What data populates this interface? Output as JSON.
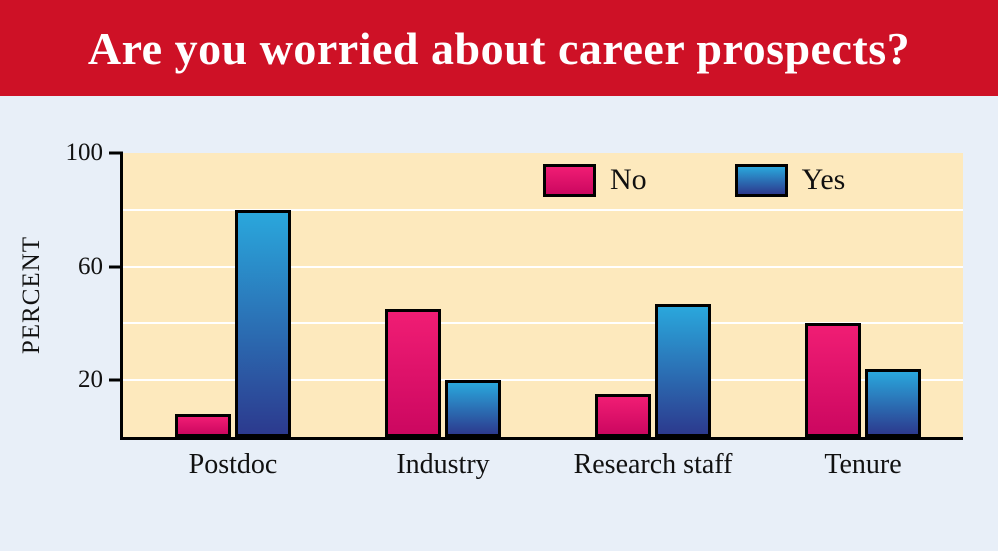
{
  "banner": {
    "title": "Are you worried about career prospects?"
  },
  "colors": {
    "banner_bg": "#ce1126",
    "banner_text": "#ffffff",
    "page_bg": "#e8eff8",
    "plot_bg": "#fde9bd",
    "gridline": "#ffffff",
    "axis": "#000000",
    "no_top": "#f01d74",
    "no_bottom": "#cc0760",
    "yes_top": "#2aa7dc",
    "yes_bottom": "#2c3a8e"
  },
  "chart_data": {
    "type": "bar",
    "title": "Are you worried about career prospects?",
    "xlabel": "",
    "ylabel": "PERCENT",
    "ylim": [
      0,
      100
    ],
    "yticks": [
      100,
      60,
      20
    ],
    "gridlines": [
      20,
      40,
      60,
      80
    ],
    "categories": [
      "Postdoc",
      "Industry",
      "Research staff",
      "Tenure"
    ],
    "series": [
      {
        "name": "No",
        "values": [
          8,
          45,
          15,
          40
        ],
        "color_top": "#f01d74",
        "color_bottom": "#cc0760"
      },
      {
        "name": "Yes",
        "values": [
          80,
          20,
          47,
          24
        ],
        "color_top": "#2aa7dc",
        "color_bottom": "#2c3a8e"
      }
    ],
    "legend_position": "top-inside",
    "grid": true
  }
}
